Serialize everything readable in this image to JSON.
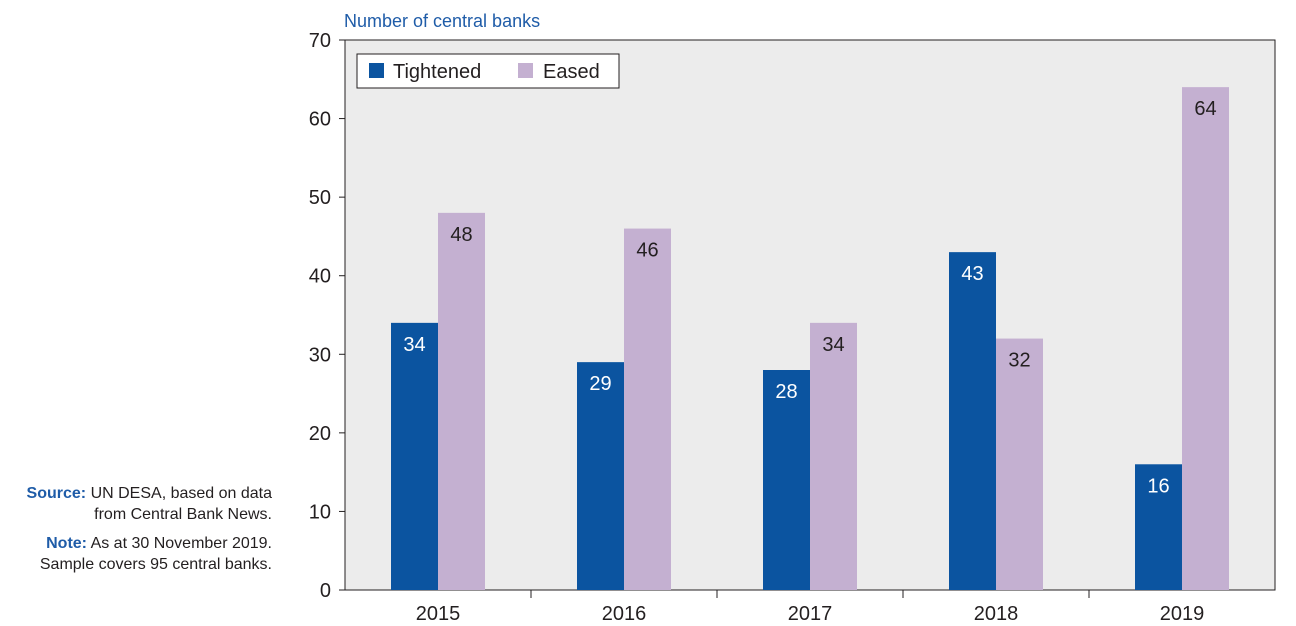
{
  "chart_data": {
    "type": "bar",
    "title": "Number of central banks",
    "categories": [
      "2015",
      "2016",
      "2017",
      "2018",
      "2019"
    ],
    "series": [
      {
        "name": "Tightened",
        "values": [
          34,
          29,
          28,
          43,
          16
        ],
        "color": "#0b54a0"
      },
      {
        "name": "Eased",
        "values": [
          48,
          46,
          34,
          32,
          64
        ],
        "color": "#c4b0d1"
      }
    ],
    "ylim": [
      0,
      70
    ],
    "yticks": [
      0,
      10,
      20,
      30,
      40,
      50,
      60,
      70
    ],
    "legend_position": "top-left",
    "grid": false,
    "plot_background": "#ececec",
    "data_labels": true
  },
  "notes": {
    "source_label": "Source:",
    "source_text_1": "UN DESA, based on data",
    "source_text_2": "from Central Bank News.",
    "note_label": "Note:",
    "note_text_1": "As at 30 November 2019.",
    "note_text_2": "Sample covers 95 central banks."
  },
  "colors": {
    "accent": "#1f5ca8",
    "text": "#231f20"
  }
}
